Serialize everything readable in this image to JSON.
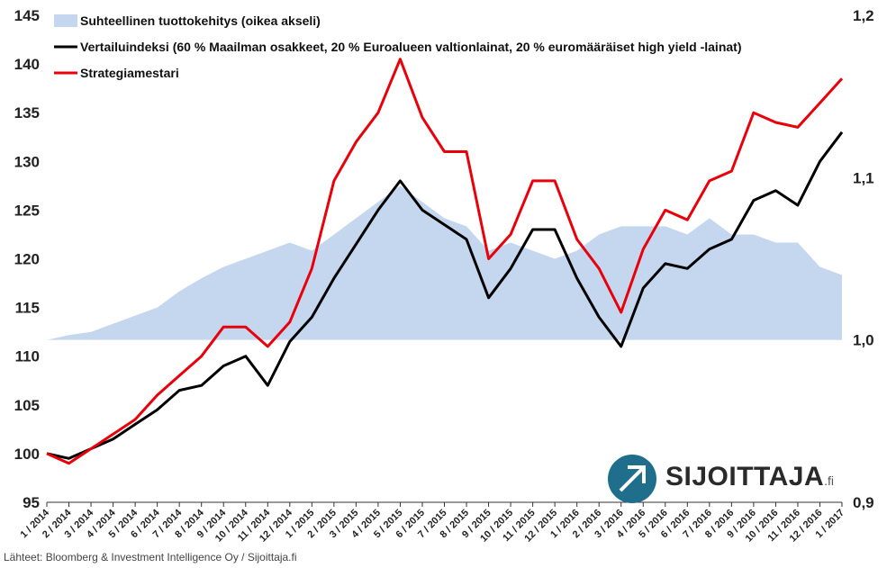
{
  "chart_data": {
    "type": "line",
    "title": "",
    "source": "Lähteet: Bloomberg & Investment Intelligence Oy / Sijoittaja.fi",
    "logo": {
      "name": "SIJOITTAJA",
      "suffix": ".fi"
    },
    "categories": [
      "1 / 2014",
      "2 / 2014",
      "3 / 2014",
      "4 / 2014",
      "5 / 2014",
      "6 / 2014",
      "7 / 2014",
      "8 / 2014",
      "9 / 2014",
      "10 / 2014",
      "11 / 2014",
      "12 / 2014",
      "1 / 2015",
      "2 / 2015",
      "3 / 2015",
      "4 / 2015",
      "5 / 2015",
      "6 / 2015",
      "7 / 2015",
      "8 / 2015",
      "9 / 2015",
      "10 / 2015",
      "11 / 2015",
      "12 / 2015",
      "1 / 2016",
      "2 / 2016",
      "3 / 2016",
      "4 / 2016",
      "5 / 2016",
      "6 / 2016",
      "7 / 2016",
      "8 / 2016",
      "9 / 2016",
      "10 / 2016",
      "11 / 2016",
      "12 / 2016",
      "1 / 2017"
    ],
    "y_left": {
      "ticks": [
        95,
        100,
        105,
        110,
        115,
        120,
        125,
        130,
        135,
        140,
        145
      ],
      "ylim": [
        95,
        145
      ]
    },
    "y_right": {
      "ticks": [
        "0,9",
        "1,0",
        "1,1",
        "1,2"
      ],
      "ylim": [
        0.9,
        1.2
      ],
      "baseline": 1.0
    },
    "legend_position": "top-left",
    "grid": false,
    "colors": {
      "relative": "#c5d7ef",
      "benchmark": "#000000",
      "strategy": "#e8000b"
    },
    "series": [
      {
        "name": "Suhteellinen tuottokehitys (oikea akseli)",
        "axis": "right",
        "type": "area",
        "values": [
          1.0,
          1.003,
          1.005,
          1.01,
          1.015,
          1.02,
          1.03,
          1.038,
          1.045,
          1.05,
          1.055,
          1.06,
          1.055,
          1.065,
          1.075,
          1.085,
          1.095,
          1.085,
          1.075,
          1.07,
          1.055,
          1.06,
          1.055,
          1.05,
          1.055,
          1.065,
          1.07,
          1.07,
          1.07,
          1.065,
          1.075,
          1.065,
          1.065,
          1.06,
          1.06,
          1.045,
          1.04
        ]
      },
      {
        "name": "Vertailuindeksi (60 % Maailman osakkeet, 20 % Euroalueen valtionlainat, 20 % euromääräiset high yield -lainat)",
        "axis": "left",
        "type": "line",
        "values": [
          100,
          99.5,
          100.5,
          101.5,
          103,
          104.5,
          106.5,
          107,
          109,
          110,
          107,
          111.5,
          114,
          118,
          121.5,
          125,
          128,
          125,
          123.5,
          122,
          116,
          119,
          123,
          123,
          118,
          114,
          111,
          117,
          119.5,
          119,
          121,
          122,
          126,
          127,
          125.5,
          130,
          133
        ]
      },
      {
        "name": "Strategiamestari",
        "axis": "left",
        "type": "line",
        "values": [
          100,
          99,
          100.5,
          102,
          103.5,
          106,
          108,
          110,
          113,
          113,
          111,
          113.5,
          119,
          128,
          132,
          135,
          140.5,
          134.5,
          131,
          131,
          120,
          122.5,
          128,
          128,
          122,
          119,
          114.5,
          121,
          125,
          124,
          128,
          129,
          135,
          134,
          133.5,
          136,
          138.5
        ]
      }
    ]
  }
}
